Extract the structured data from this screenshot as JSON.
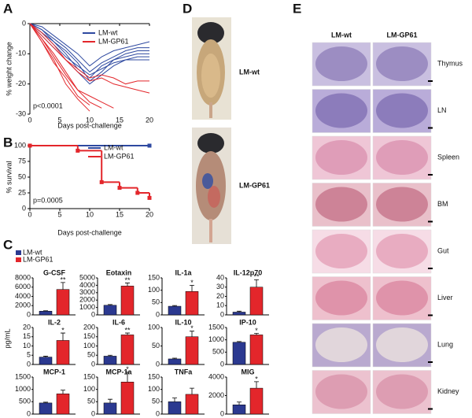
{
  "panel_labels": [
    "A",
    "B",
    "C",
    "D",
    "E"
  ],
  "chart_data": [
    {
      "type": "line",
      "ylabel": "% weight change",
      "xlabel": "Days post-challenge",
      "annotation": "p<0.0001",
      "x": [
        0,
        2,
        4,
        6,
        8,
        10,
        12,
        14,
        16,
        18,
        20
      ],
      "xlim": [
        0,
        20
      ],
      "xticks": [
        0,
        5,
        10,
        15,
        20
      ],
      "ylim": [
        -30,
        0
      ],
      "yticks": [
        0,
        -10,
        -20,
        -30
      ],
      "series": [
        {
          "name": "LM-wt",
          "color": "#2e49a0",
          "mice": [
            [
              0,
              -3,
              -6,
              -10,
              -15,
              -18,
              -14,
              -12,
              -11,
              -10,
              -10
            ],
            [
              0,
              -2,
              -5,
              -8,
              -12,
              -16,
              -13,
              -11,
              -9,
              -8,
              -8
            ],
            [
              0,
              -4,
              -8,
              -12,
              -16,
              -20,
              -17,
              -14,
              -12,
              -12,
              -12
            ],
            [
              0,
              -1,
              -4,
              -7,
              -10,
              -14,
              -11,
              -9,
              -8,
              -7,
              -6
            ],
            [
              0,
              -3,
              -7,
              -11,
              -14,
              -17,
              -15,
              -13,
              -12,
              -11,
              -11
            ],
            [
              0,
              -2,
              -6,
              -9,
              -13,
              -19,
              -16,
              -12,
              -10,
              -9,
              -9
            ]
          ]
        },
        {
          "name": "LM-GP61",
          "color": "#e3262b",
          "mice": [
            [
              0,
              -6,
              -12,
              -20,
              -25,
              -29,
              null,
              null,
              null,
              null,
              null
            ],
            [
              0,
              -5,
              -10,
              -16,
              -22,
              -26,
              -28,
              null,
              null,
              null,
              null
            ],
            [
              0,
              -4,
              -8,
              -12,
              -16,
              -19,
              -18,
              -20,
              -21,
              -22,
              -23
            ],
            [
              0,
              -5,
              -11,
              -17,
              -22,
              -24,
              -26,
              -28,
              null,
              null,
              null
            ],
            [
              0,
              -3,
              -7,
              -12,
              -15,
              -18,
              -17,
              -18,
              -20,
              -19,
              -19
            ],
            [
              0,
              -6,
              -13,
              -18,
              -24,
              -27,
              null,
              null,
              null,
              null,
              null
            ]
          ]
        }
      ]
    },
    {
      "type": "step",
      "ylabel": "% survival",
      "xlabel": "Days post-challenge",
      "annotation": "p=0.0005",
      "xlim": [
        0,
        20
      ],
      "xticks": [
        0,
        5,
        10,
        15,
        20
      ],
      "ylim": [
        0,
        100
      ],
      "yticks": [
        0,
        25,
        50,
        75,
        100
      ],
      "series": [
        {
          "name": "LM-wt",
          "color": "#2e49a0",
          "x": [
            0,
            20
          ],
          "values": [
            100,
            100
          ]
        },
        {
          "name": "LM-GP61",
          "color": "#e3262b",
          "x": [
            0,
            8,
            12,
            15,
            18,
            20
          ],
          "values": [
            100,
            92,
            42,
            33,
            25,
            17
          ]
        }
      ]
    },
    {
      "type": "bar-panels",
      "ylabel": "pg/mL",
      "series": [
        {
          "name": "LM-wt",
          "color": "#2b3990"
        },
        {
          "name": "LM-GP61",
          "color": "#e3262b"
        }
      ],
      "panels": [
        {
          "title": "G-CSF",
          "ylim": [
            0,
            8000
          ],
          "yticks": [
            0,
            2000,
            4000,
            6000,
            8000
          ],
          "values": [
            800,
            5500
          ],
          "errors": [
            100,
            1500
          ],
          "annotation": "**"
        },
        {
          "title": "Eotaxin",
          "ylim": [
            0,
            5000
          ],
          "yticks": [
            0,
            1000,
            2000,
            3000,
            4000,
            5000
          ],
          "values": [
            1300,
            3900
          ],
          "errors": [
            100,
            400
          ],
          "annotation": "**"
        },
        {
          "title": "IL-1a",
          "ylim": [
            0,
            150
          ],
          "yticks": [
            0,
            50,
            100,
            150
          ],
          "values": [
            35,
            95
          ],
          "errors": [
            3,
            25
          ],
          "annotation": "*"
        },
        {
          "title": "IL-12p70",
          "ylim": [
            0,
            40
          ],
          "yticks": [
            0,
            10,
            20,
            30,
            40
          ],
          "values": [
            3,
            30
          ],
          "errors": [
            1,
            8
          ],
          "annotation": "**"
        },
        {
          "title": "IL-2",
          "ylim": [
            0,
            20
          ],
          "yticks": [
            0,
            5,
            10,
            15,
            20
          ],
          "values": [
            4,
            13
          ],
          "errors": [
            0.5,
            4
          ],
          "annotation": "*"
        },
        {
          "title": "IL-6",
          "ylim": [
            0,
            200
          ],
          "yticks": [
            0,
            50,
            100,
            150,
            200
          ],
          "values": [
            45,
            160
          ],
          "errors": [
            5,
            10
          ],
          "annotation": "**"
        },
        {
          "title": "IL-10",
          "ylim": [
            0,
            100
          ],
          "yticks": [
            0,
            50,
            100
          ],
          "values": [
            15,
            75
          ],
          "errors": [
            2,
            15
          ],
          "annotation": "*"
        },
        {
          "title": "IP-10",
          "ylim": [
            0,
            1500
          ],
          "yticks": [
            0,
            500,
            1000,
            1500
          ],
          "values": [
            900,
            1200
          ],
          "errors": [
            30,
            60
          ],
          "annotation": "*"
        },
        {
          "title": "MCP-1",
          "ylim": [
            0,
            1500
          ],
          "yticks": [
            0,
            500,
            1000,
            1500
          ],
          "values": [
            450,
            820
          ],
          "errors": [
            30,
            150
          ]
        },
        {
          "title": "MCP-1a",
          "ylim": [
            0,
            150
          ],
          "yticks": [
            0,
            50,
            100,
            150
          ],
          "values": [
            45,
            130
          ],
          "errors": [
            15,
            40
          ],
          "annotation": "*"
        },
        {
          "title": "TNFa",
          "ylim": [
            0,
            150
          ],
          "yticks": [
            0,
            50,
            100,
            150
          ],
          "values": [
            50,
            80
          ],
          "errors": [
            15,
            25
          ]
        },
        {
          "title": "MIG",
          "ylim": [
            0,
            4000
          ],
          "yticks": [
            0,
            2000,
            4000
          ],
          "values": [
            1000,
            2800
          ],
          "errors": [
            300,
            700
          ],
          "annotation": "*"
        }
      ]
    }
  ],
  "photos": {
    "labels": [
      "LM-wt",
      "LM-GP61"
    ]
  },
  "histology": {
    "columns": [
      "LM-wt",
      "LM-GP61"
    ],
    "rows": [
      "Thymus",
      "LN",
      "Spleen",
      "BM",
      "Gut",
      "Liver",
      "Lung",
      "Kidney"
    ]
  }
}
